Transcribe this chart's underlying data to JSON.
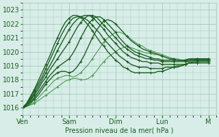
{
  "xlabel": "Pression niveau de la mer( hPa )",
  "background_color": "#d8ede8",
  "grid_color": "#a0c8b8",
  "line_color_dark": "#1a5c20",
  "line_color_light": "#4a9a50",
  "ylim": [
    1015.5,
    1023.5
  ],
  "yticks": [
    1016,
    1017,
    1018,
    1019,
    1020,
    1021,
    1022,
    1023
  ],
  "x_days": [
    "Ven",
    "Sam",
    "Dim",
    "Lun",
    "M"
  ],
  "x_day_positions": [
    0,
    24,
    48,
    72,
    96
  ],
  "xlim": [
    0,
    100
  ],
  "series": [
    {
      "x": [
        0,
        2,
        4,
        6,
        8,
        10,
        12,
        14,
        16,
        18,
        20,
        22,
        24,
        26,
        28,
        30,
        32,
        34,
        36,
        38,
        40,
        42,
        44,
        46,
        48,
        50,
        52,
        54,
        56,
        58,
        60,
        62,
        64,
        66,
        68,
        70,
        72,
        74,
        76,
        78,
        80,
        82,
        84,
        86,
        88,
        90,
        92,
        94,
        96
      ],
      "y": [
        1016.0,
        1016.1,
        1016.2,
        1016.3,
        1016.5,
        1016.7,
        1016.9,
        1017.1,
        1017.3,
        1017.5,
        1017.7,
        1017.9,
        1018.0,
        1018.1,
        1018.1,
        1018.0,
        1018.0,
        1018.1,
        1018.3,
        1018.6,
        1019.0,
        1019.3,
        1019.6,
        1019.8,
        1020.0,
        1020.2,
        1020.3,
        1020.4,
        1020.3,
        1020.2,
        1020.1,
        1020.0,
        1019.9,
        1019.9,
        1019.8,
        1019.8,
        1019.7,
        1019.6,
        1019.5,
        1019.5,
        1019.4,
        1019.4,
        1019.4,
        1019.4,
        1019.4,
        1019.4,
        1019.4,
        1019.4,
        1019.4
      ],
      "color": "#4a9a50",
      "lw": 0.8
    },
    {
      "x": [
        0,
        2,
        4,
        6,
        8,
        10,
        12,
        14,
        16,
        18,
        20,
        22,
        24,
        26,
        28,
        30,
        32,
        34,
        36,
        38,
        40,
        42,
        44,
        46,
        48,
        50,
        52,
        54,
        56,
        58,
        60,
        62,
        64,
        66,
        68,
        70,
        72,
        74,
        76,
        78,
        80,
        82,
        84,
        86,
        88,
        90,
        92,
        94,
        96
      ],
      "y": [
        1016.0,
        1016.1,
        1016.2,
        1016.4,
        1016.7,
        1017.0,
        1017.3,
        1017.6,
        1017.9,
        1018.1,
        1018.2,
        1018.3,
        1018.3,
        1018.2,
        1018.3,
        1018.5,
        1018.8,
        1019.1,
        1019.5,
        1019.9,
        1020.3,
        1020.7,
        1021.0,
        1021.2,
        1021.4,
        1021.4,
        1021.3,
        1021.1,
        1020.9,
        1020.7,
        1020.5,
        1020.4,
        1020.2,
        1020.1,
        1020.0,
        1019.9,
        1019.8,
        1019.7,
        1019.6,
        1019.5,
        1019.5,
        1019.4,
        1019.4,
        1019.4,
        1019.4,
        1019.5,
        1019.5,
        1019.5,
        1019.5
      ],
      "color": "#4a9a50",
      "lw": 0.8
    },
    {
      "x": [
        0,
        2,
        4,
        6,
        8,
        10,
        12,
        14,
        16,
        18,
        20,
        22,
        24,
        26,
        28,
        30,
        32,
        34,
        36,
        38,
        40,
        42,
        44,
        46,
        48,
        50,
        52,
        54,
        56,
        58,
        60,
        62,
        64,
        66,
        68,
        70,
        72,
        74,
        76,
        78,
        80,
        82,
        84,
        86,
        88,
        90,
        92,
        94,
        96
      ],
      "y": [
        1016.0,
        1016.1,
        1016.3,
        1016.6,
        1016.9,
        1017.3,
        1017.7,
        1018.0,
        1018.3,
        1018.5,
        1018.6,
        1018.6,
        1018.5,
        1018.6,
        1018.9,
        1019.3,
        1019.8,
        1020.4,
        1021.0,
        1021.5,
        1021.9,
        1022.2,
        1022.3,
        1022.2,
        1022.0,
        1021.7,
        1021.4,
        1021.1,
        1020.8,
        1020.6,
        1020.4,
        1020.2,
        1020.1,
        1020.0,
        1019.9,
        1019.8,
        1019.7,
        1019.6,
        1019.5,
        1019.5,
        1019.4,
        1019.4,
        1019.4,
        1019.5,
        1019.5,
        1019.5,
        1019.5,
        1019.5,
        1019.5
      ],
      "color": "#1a5c20",
      "lw": 1.0
    },
    {
      "x": [
        0,
        2,
        4,
        6,
        8,
        10,
        12,
        14,
        16,
        18,
        20,
        22,
        24,
        26,
        28,
        30,
        32,
        34,
        36,
        38,
        40,
        42,
        44,
        46,
        48,
        50,
        52,
        54,
        56,
        58,
        60,
        62,
        64,
        66,
        68,
        70,
        72,
        74,
        76,
        78,
        80,
        82,
        84,
        86,
        88,
        90,
        92,
        94,
        96
      ],
      "y": [
        1016.0,
        1016.2,
        1016.4,
        1016.7,
        1017.1,
        1017.5,
        1017.9,
        1018.3,
        1018.6,
        1018.9,
        1019.1,
        1019.3,
        1019.5,
        1019.9,
        1020.4,
        1021.0,
        1021.5,
        1022.0,
        1022.3,
        1022.5,
        1022.5,
        1022.3,
        1022.0,
        1021.7,
        1021.4,
        1021.0,
        1020.7,
        1020.4,
        1020.2,
        1020.0,
        1019.9,
        1019.8,
        1019.7,
        1019.6,
        1019.5,
        1019.5,
        1019.4,
        1019.4,
        1019.4,
        1019.4,
        1019.4,
        1019.4,
        1019.4,
        1019.4,
        1019.5,
        1019.5,
        1019.5,
        1019.5,
        1019.5
      ],
      "color": "#1a5c20",
      "lw": 1.0
    },
    {
      "x": [
        0,
        2,
        4,
        6,
        8,
        10,
        12,
        14,
        16,
        18,
        20,
        22,
        24,
        26,
        28,
        30,
        32,
        34,
        36,
        38,
        40,
        42,
        44,
        46,
        48,
        50,
        52,
        54,
        56,
        58,
        60,
        62,
        64,
        66,
        68,
        70,
        72,
        74,
        76,
        78,
        80,
        82,
        84,
        86,
        88,
        90,
        92,
        94,
        96
      ],
      "y": [
        1016.0,
        1016.2,
        1016.5,
        1016.9,
        1017.3,
        1017.8,
        1018.2,
        1018.7,
        1019.1,
        1019.5,
        1019.9,
        1020.3,
        1020.7,
        1021.2,
        1021.7,
        1022.1,
        1022.4,
        1022.6,
        1022.6,
        1022.5,
        1022.2,
        1021.9,
        1021.6,
        1021.3,
        1021.0,
        1020.7,
        1020.4,
        1020.2,
        1020.0,
        1019.8,
        1019.7,
        1019.6,
        1019.5,
        1019.5,
        1019.4,
        1019.4,
        1019.3,
        1019.3,
        1019.3,
        1019.3,
        1019.3,
        1019.3,
        1019.3,
        1019.3,
        1019.4,
        1019.4,
        1019.4,
        1019.4,
        1019.4
      ],
      "color": "#1a5c20",
      "lw": 1.0
    },
    {
      "x": [
        0,
        2,
        4,
        6,
        8,
        10,
        12,
        14,
        16,
        18,
        20,
        22,
        24,
        26,
        28,
        30,
        32,
        34,
        36,
        38,
        40,
        42,
        44,
        46,
        48,
        50,
        52,
        54,
        56,
        58,
        60,
        62,
        64,
        66,
        68,
        70,
        72,
        74,
        76,
        78,
        80,
        82,
        84,
        86,
        88,
        90,
        92,
        94,
        96
      ],
      "y": [
        1016.0,
        1016.3,
        1016.6,
        1017.0,
        1017.5,
        1018.0,
        1018.5,
        1019.0,
        1019.5,
        1020.1,
        1020.6,
        1021.1,
        1021.6,
        1022.0,
        1022.3,
        1022.5,
        1022.6,
        1022.6,
        1022.5,
        1022.2,
        1021.9,
        1021.6,
        1021.2,
        1020.9,
        1020.6,
        1020.3,
        1020.0,
        1019.8,
        1019.6,
        1019.5,
        1019.4,
        1019.3,
        1019.3,
        1019.2,
        1019.2,
        1019.2,
        1019.1,
        1019.1,
        1019.1,
        1019.1,
        1019.1,
        1019.1,
        1019.1,
        1019.2,
        1019.2,
        1019.2,
        1019.2,
        1019.2,
        1019.2
      ],
      "color": "#1a5c20",
      "lw": 1.0
    },
    {
      "x": [
        0,
        2,
        4,
        6,
        8,
        10,
        12,
        14,
        16,
        18,
        20,
        22,
        24,
        26,
        28,
        30,
        32,
        34,
        36,
        38,
        40,
        42,
        44,
        46,
        48,
        50,
        52,
        54,
        56,
        58,
        60,
        62,
        64,
        66,
        68,
        70,
        72,
        74,
        76,
        78,
        80,
        82,
        84,
        86,
        88,
        90,
        92,
        94,
        96
      ],
      "y": [
        1016.0,
        1016.3,
        1016.7,
        1017.2,
        1017.7,
        1018.2,
        1018.8,
        1019.4,
        1020.0,
        1020.6,
        1021.2,
        1021.7,
        1022.1,
        1022.4,
        1022.5,
        1022.5,
        1022.4,
        1022.2,
        1021.9,
        1021.6,
        1021.3,
        1020.9,
        1020.6,
        1020.3,
        1020.0,
        1019.7,
        1019.5,
        1019.3,
        1019.1,
        1019.0,
        1018.9,
        1018.9,
        1018.9,
        1018.8,
        1018.8,
        1018.8,
        1018.8,
        1018.9,
        1018.9,
        1018.9,
        1019.0,
        1019.0,
        1019.1,
        1019.2,
        1019.2,
        1019.3,
        1019.3,
        1019.3,
        1019.3
      ],
      "color": "#1a5c20",
      "lw": 1.0
    },
    {
      "x": [
        0,
        2,
        4,
        6,
        8,
        10,
        12,
        14,
        16,
        18,
        20,
        22,
        24,
        26,
        28,
        30,
        32,
        34,
        36,
        38,
        40,
        42,
        44,
        46,
        48,
        50,
        52,
        54,
        56,
        58,
        60,
        62,
        64,
        66,
        68,
        70,
        72,
        74,
        76,
        78,
        80,
        82,
        84,
        86,
        88,
        90,
        92,
        94,
        96
      ],
      "y": [
        1016.0,
        1016.3,
        1016.8,
        1017.3,
        1017.9,
        1018.5,
        1019.1,
        1019.7,
        1020.4,
        1021.0,
        1021.6,
        1022.1,
        1022.4,
        1022.6,
        1022.6,
        1022.5,
        1022.2,
        1021.9,
        1021.5,
        1021.1,
        1020.7,
        1020.4,
        1020.0,
        1019.7,
        1019.4,
        1019.2,
        1018.9,
        1018.8,
        1018.6,
        1018.5,
        1018.5,
        1018.5,
        1018.5,
        1018.5,
        1018.5,
        1018.6,
        1018.6,
        1018.7,
        1018.8,
        1018.9,
        1018.9,
        1019.0,
        1019.1,
        1019.2,
        1019.3,
        1019.4,
        1019.4,
        1019.4,
        1019.4
      ],
      "color": "#1a5c20",
      "lw": 1.0
    }
  ]
}
